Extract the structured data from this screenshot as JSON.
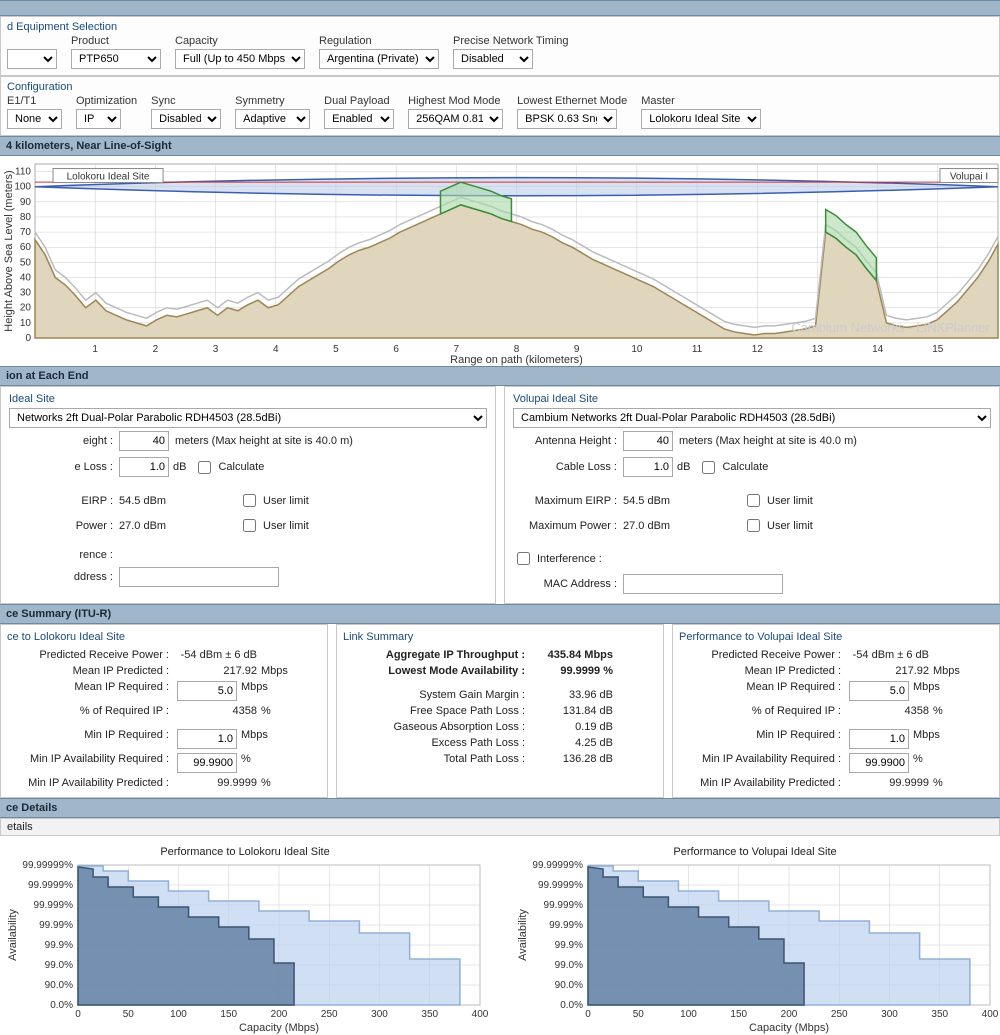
{
  "colors": {
    "section_header_bg": "#9fb7c9",
    "section_header_border": "#6c8ba3",
    "panel_border": "#c8c8c8",
    "grid": "#cccccc",
    "terrain_fill": "#e0d5bd",
    "terrain_stroke": "#9c8654",
    "clutter_fill": "#a8d8a8",
    "clutter_stroke": "#3c8c3c",
    "fresnel_fill": "#b8c8e8",
    "fresnel_stroke": "#3a5fb0",
    "los_stroke": "#d03030",
    "step_dark_fill": "#6a87a8",
    "step_dark_stroke": "#3a556e",
    "step_light_fill": "#bcd2ee",
    "step_light_stroke": "#8fb0d8"
  },
  "equipment": {
    "section_title": "d Equipment Selection",
    "product_label": "Product",
    "product_value": "PTP650",
    "capacity_label": "Capacity",
    "capacity_value": "Full (Up to 450 Mbps)",
    "regulation_label": "Regulation",
    "regulation_value": "Argentina (Private)",
    "timing_label": "Precise Network Timing",
    "timing_value": "Disabled"
  },
  "config": {
    "section_title": "Configuration",
    "e1t1_label": "E1/T1",
    "e1t1_value": "None",
    "opt_label": "Optimization",
    "opt_value": "IP",
    "sync_label": "Sync",
    "sync_value": "Disabled",
    "symmetry_label": "Symmetry",
    "symmetry_value": "Adaptive",
    "dualpayload_label": "Dual Payload",
    "dualpayload_value": "Enabled",
    "highmod_label": "Highest Mod Mode",
    "highmod_value": "256QAM 0.81",
    "lowmod_label": "Lowest Ethernet Mode",
    "lowmod_value": "BPSK 0.63 Sngl",
    "master_label": "Master",
    "master_value": "Lolokoru Ideal Site"
  },
  "profile": {
    "header": "4 kilometers, Near Line-of-Sight",
    "site_a_label": "Lolokoru Ideal Site",
    "site_b_label": "Volupai I",
    "x_label": "Range on path (kilometers)",
    "y_label": "Height Above Sea Level (meters)",
    "watermark": "Cambium Networks - LINKPlanner",
    "x_ticks": [
      1,
      2,
      3,
      4,
      5,
      6,
      7,
      8,
      9,
      10,
      11,
      12,
      13,
      14,
      15
    ],
    "y_ticks": [
      0,
      10,
      20,
      30,
      40,
      50,
      60,
      70,
      80,
      90,
      100,
      110
    ],
    "x_range": [
      0,
      16
    ],
    "y_range": [
      0,
      115
    ],
    "terrain_y": [
      65,
      55,
      40,
      35,
      28,
      20,
      25,
      18,
      15,
      12,
      10,
      8,
      12,
      15,
      14,
      16,
      18,
      20,
      15,
      20,
      18,
      22,
      25,
      20,
      22,
      28,
      34,
      38,
      42,
      46,
      51,
      55,
      58,
      60,
      63,
      66,
      70,
      73,
      76,
      79,
      82,
      85,
      88,
      86,
      84,
      82,
      79,
      77,
      75,
      72,
      70,
      67,
      63,
      60,
      56,
      52,
      49,
      46,
      43,
      40,
      37,
      34,
      30,
      26,
      22,
      18,
      14,
      10,
      6,
      4,
      3,
      2,
      3,
      3,
      4,
      5,
      6,
      8,
      70,
      66,
      60,
      55,
      46,
      38,
      10,
      8,
      7,
      8,
      9,
      12,
      18,
      24,
      32,
      40,
      50,
      62
    ],
    "clutter_regions": [
      {
        "start_idx": 40,
        "end_idx": 47,
        "height": 15
      },
      {
        "start_idx": 78,
        "end_idx": 83,
        "height": 15
      }
    ],
    "fresnel_top_y": 108,
    "fresnel_mid_y": 100,
    "fresnel_bottom_y": 92,
    "los_left_y": 103,
    "los_right_y": 103
  },
  "endpoints": {
    "section_title": "ion at Each End",
    "site_a": {
      "title": "Ideal Site",
      "antenna_value": "Networks 2ft Dual-Polar Parabolic RDH4503 (28.5dBi)",
      "height_label": "eight :",
      "height_value": "40",
      "height_note": "meters   (Max height at site is 40.0 m)",
      "loss_label": "e Loss :",
      "loss_value": "1.0",
      "loss_unit": "dB",
      "calculate_label": "Calculate",
      "eirp_label": "EIRP :",
      "eirp_value": "54.5 dBm",
      "power_label": "Power :",
      "power_value": "27.0 dBm",
      "userlimit_label": "User limit",
      "interference_label": "rence :",
      "mac_label": "ddress :"
    },
    "site_b": {
      "title": "Volupai Ideal Site",
      "antenna_value": "Cambium Networks 2ft Dual-Polar Parabolic RDH4503 (28.5dBi)",
      "height_label": "Antenna Height :",
      "height_value": "40",
      "height_note": "meters   (Max height at site is 40.0 m)",
      "loss_label": "Cable Loss :",
      "loss_value": "1.0",
      "loss_unit": "dB",
      "calculate_label": "Calculate",
      "eirp_label": "Maximum EIRP :",
      "eirp_value": "54.5 dBm",
      "power_label": "Maximum Power :",
      "power_value": "27.0 dBm",
      "userlimit_label": "User limit",
      "interference_label": "Interference :",
      "mac_label": "MAC Address :"
    }
  },
  "perf": {
    "section_title": "ce Summary (ITU-R)",
    "to_a": {
      "title": "ce to Lolokoru Ideal Site",
      "rows": {
        "rx_label": "Predicted Receive Power :",
        "rx_val": "-54 dBm ± 6 dB",
        "mean_pred_label": "Mean IP Predicted :",
        "mean_pred_val": "217.92",
        "mean_pred_unit": "Mbps",
        "mean_req_label": "Mean IP Required :",
        "mean_req_val": "5.0",
        "mean_req_unit": "Mbps",
        "pct_label": "% of Required IP :",
        "pct_val": "4358",
        "pct_unit": "%",
        "min_req_label": "Min IP Required :",
        "min_req_val": "1.0",
        "min_req_unit": "Mbps",
        "avail_req_label": "Min IP Availability Required :",
        "avail_req_val": "99.9900",
        "avail_req_unit": "%",
        "avail_pred_label": "Min IP Availability Predicted :",
        "avail_pred_val": "99.9999",
        "avail_pred_unit": "%"
      }
    },
    "link": {
      "title": "Link Summary",
      "agg_label": "Aggregate IP Throughput :",
      "agg_val": "435.84 Mbps",
      "low_label": "Lowest Mode Availability :",
      "low_val": "99.9999 %",
      "gain_label": "System Gain Margin :",
      "gain_val": "33.96 dB",
      "fspl_label": "Free Space Path Loss :",
      "fspl_val": "131.84 dB",
      "gas_label": "Gaseous Absorption Loss :",
      "gas_val": "0.19 dB",
      "excess_label": "Excess Path Loss :",
      "excess_val": "4.25 dB",
      "total_label": "Total Path Loss :",
      "total_val": "136.28 dB"
    },
    "to_b": {
      "title": "Performance to Volupai Ideal Site",
      "rows": {
        "rx_label": "Predicted Receive Power :",
        "rx_val": "-54 dBm ± 6 dB",
        "mean_pred_label": "Mean IP Predicted :",
        "mean_pred_val": "217.92",
        "mean_pred_unit": "Mbps",
        "mean_req_label": "Mean IP Required :",
        "mean_req_val": "5.0",
        "mean_req_unit": "Mbps",
        "pct_label": "% of Required IP :",
        "pct_val": "4358",
        "pct_unit": "%",
        "min_req_label": "Min IP Required :",
        "min_req_val": "1.0",
        "min_req_unit": "Mbps",
        "avail_req_label": "Min IP Availability Required :",
        "avail_req_val": "99.9900",
        "avail_req_unit": "%",
        "avail_pred_label": "Min IP Availability Predicted :",
        "avail_pred_val": "99.9999",
        "avail_pred_unit": "%"
      }
    }
  },
  "details": {
    "section_title": "ce Details",
    "sub_title": "etails",
    "chart_a_title": "Performance to Lolokoru Ideal Site",
    "chart_b_title": "Performance to Volupai Ideal Site",
    "x_label": "Capacity (Mbps)",
    "y_label": "Availability",
    "x_ticks": [
      0,
      50,
      100,
      150,
      200,
      250,
      300,
      350,
      400
    ],
    "y_tick_labels": [
      "0.0%",
      "90.0%",
      "99.0%",
      "99.9%",
      "99.99%",
      "99.999%",
      "99.9999%",
      "99.99999%"
    ],
    "series_dark": [
      [
        0,
        6.9
      ],
      [
        15,
        6.8
      ],
      [
        15,
        6.4
      ],
      [
        30,
        6.4
      ],
      [
        30,
        5.9
      ],
      [
        55,
        5.9
      ],
      [
        55,
        5.4
      ],
      [
        80,
        5.4
      ],
      [
        80,
        4.9
      ],
      [
        110,
        4.9
      ],
      [
        110,
        4.4
      ],
      [
        140,
        4.4
      ],
      [
        140,
        3.9
      ],
      [
        170,
        3.9
      ],
      [
        170,
        3.3
      ],
      [
        195,
        3.3
      ],
      [
        195,
        2.1
      ],
      [
        215,
        2.1
      ],
      [
        215,
        0
      ]
    ],
    "series_light": [
      [
        0,
        6.95
      ],
      [
        25,
        6.95
      ],
      [
        25,
        6.7
      ],
      [
        50,
        6.7
      ],
      [
        50,
        6.2
      ],
      [
        90,
        6.2
      ],
      [
        90,
        5.7
      ],
      [
        130,
        5.7
      ],
      [
        130,
        5.2
      ],
      [
        180,
        5.2
      ],
      [
        180,
        4.7
      ],
      [
        230,
        4.7
      ],
      [
        230,
        4.2
      ],
      [
        280,
        4.2
      ],
      [
        280,
        3.6
      ],
      [
        330,
        3.6
      ],
      [
        330,
        2.3
      ],
      [
        380,
        2.3
      ],
      [
        380,
        0
      ]
    ]
  }
}
